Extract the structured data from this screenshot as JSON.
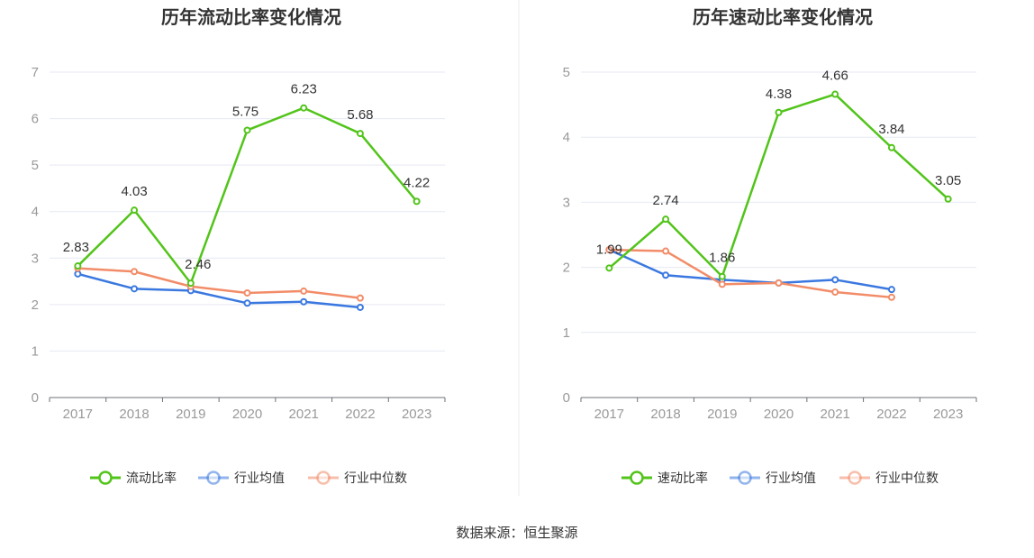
{
  "source": "数据来源：恒生聚源",
  "chart_data": [
    {
      "type": "line",
      "title": "历年流动比率变化情况",
      "categories": [
        "2017",
        "2018",
        "2019",
        "2020",
        "2021",
        "2022",
        "2023"
      ],
      "ylim": [
        0,
        7
      ],
      "yticks": [
        0,
        1,
        2,
        3,
        4,
        5,
        6,
        7
      ],
      "grid": true,
      "legend_position": "bottom",
      "series": [
        {
          "name": "流动比率",
          "color": "#52c41a",
          "values": [
            2.83,
            4.03,
            2.46,
            5.75,
            6.23,
            5.68,
            4.22
          ],
          "labels": [
            "2.83",
            "4.03",
            "2.46",
            "5.75",
            "6.23",
            "5.68",
            "4.22"
          ]
        },
        {
          "name": "行业均值",
          "color": "#3a78e0",
          "values": [
            2.66,
            2.34,
            2.3,
            2.03,
            2.06,
            1.94,
            null
          ]
        },
        {
          "name": "行业中位数",
          "color": "#f28c68",
          "values": [
            2.78,
            2.71,
            2.39,
            2.25,
            2.29,
            2.14,
            null
          ]
        }
      ]
    },
    {
      "type": "line",
      "title": "历年速动比率变化情况",
      "categories": [
        "2017",
        "2018",
        "2019",
        "2020",
        "2021",
        "2022",
        "2023"
      ],
      "ylim": [
        0,
        5
      ],
      "yticks": [
        0,
        1,
        2,
        3,
        4,
        5
      ],
      "grid": true,
      "legend_position": "bottom",
      "series": [
        {
          "name": "速动比率",
          "color": "#52c41a",
          "values": [
            1.99,
            2.74,
            1.86,
            4.38,
            4.66,
            3.84,
            3.05
          ],
          "labels": [
            "1.99",
            "2.74",
            "1.86",
            "4.38",
            "4.66",
            "3.84",
            "3.05"
          ]
        },
        {
          "name": "行业均值",
          "color": "#3a78e0",
          "values": [
            2.27,
            1.88,
            1.81,
            1.76,
            1.81,
            1.66,
            null
          ]
        },
        {
          "name": "行业中位数",
          "color": "#f28c68",
          "values": [
            2.27,
            2.25,
            1.74,
            1.76,
            1.62,
            1.54,
            null
          ]
        }
      ]
    }
  ]
}
